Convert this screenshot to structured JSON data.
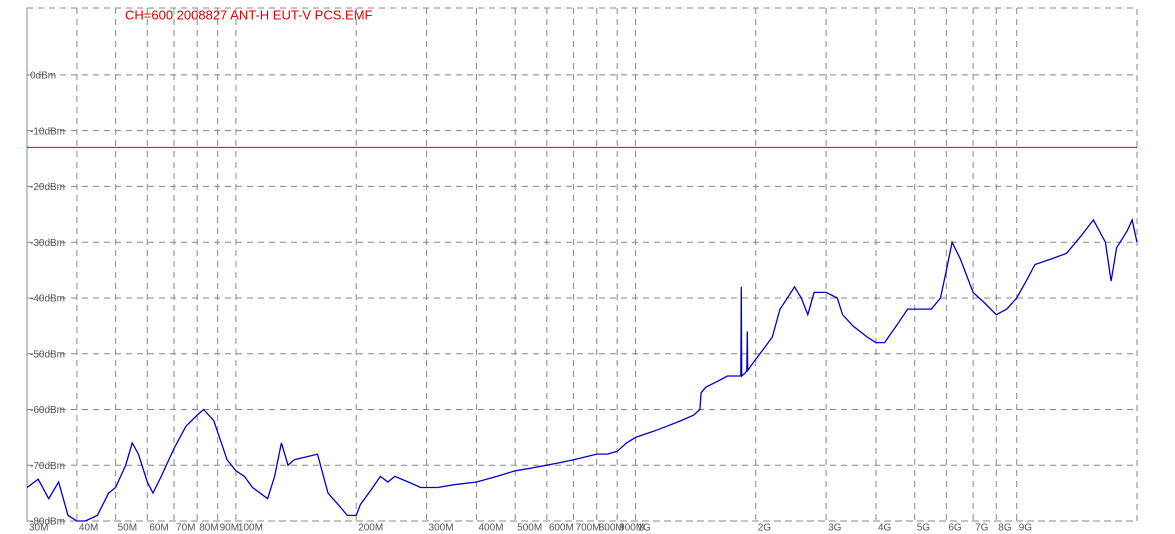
{
  "chart_data": {
    "type": "line",
    "title": "CH=600 2008827 ANT-H EUT-V PCS.EMF",
    "xscale": "log",
    "grid": true,
    "xlim": [
      30,
      18000
    ],
    "ylim": [
      -80,
      12
    ],
    "xticks": [
      {
        "value": 30,
        "label": "30M"
      },
      {
        "value": 40,
        "label": "40M"
      },
      {
        "value": 50,
        "label": "50M"
      },
      {
        "value": 60,
        "label": "60M"
      },
      {
        "value": 70,
        "label": "70M"
      },
      {
        "value": 80,
        "label": "80M"
      },
      {
        "value": 90,
        "label": "90M"
      },
      {
        "value": 100,
        "label": "100M"
      },
      {
        "value": 200,
        "label": "200M"
      },
      {
        "value": 300,
        "label": "300M"
      },
      {
        "value": 400,
        "label": "400M"
      },
      {
        "value": 500,
        "label": "500M"
      },
      {
        "value": 600,
        "label": "600M"
      },
      {
        "value": 700,
        "label": "700M"
      },
      {
        "value": 800,
        "label": "800M"
      },
      {
        "value": 900,
        "label": "900M"
      },
      {
        "value": 1000,
        "label": "1G"
      },
      {
        "value": 2000,
        "label": "2G"
      },
      {
        "value": 3000,
        "label": "3G"
      },
      {
        "value": 4000,
        "label": "4G"
      },
      {
        "value": 5000,
        "label": "5G"
      },
      {
        "value": 6000,
        "label": "6G"
      },
      {
        "value": 7000,
        "label": "7G"
      },
      {
        "value": 8000,
        "label": "8G"
      },
      {
        "value": 9000,
        "label": "9G"
      }
    ],
    "yticks": [
      {
        "value": -80,
        "label": "-80dBm"
      },
      {
        "value": -70,
        "label": "-70dBm"
      },
      {
        "value": -60,
        "label": "-60dBm"
      },
      {
        "value": -50,
        "label": "-50dBm"
      },
      {
        "value": -40,
        "label": "-40dBm"
      },
      {
        "value": -30,
        "label": "-30dBm"
      },
      {
        "value": -20,
        "label": "-20dBm"
      },
      {
        "value": -10,
        "label": "-10dBm"
      },
      {
        "value": 0,
        "label": "0dBm"
      }
    ],
    "limit_line": {
      "value": -13,
      "color": "#e00000"
    },
    "series": [
      {
        "color": "#0000cc",
        "x": [
          30,
          32,
          34,
          36,
          38,
          40,
          42,
          45,
          48,
          50,
          53,
          55,
          57,
          60,
          62,
          65,
          70,
          75,
          80,
          83,
          88,
          92,
          95,
          100,
          105,
          110,
          120,
          125,
          130,
          135,
          140,
          150,
          160,
          170,
          180,
          190,
          200,
          205,
          210,
          220,
          230,
          240,
          250,
          270,
          290,
          320,
          350,
          400,
          450,
          500,
          550,
          600,
          650,
          700,
          750,
          800,
          850,
          900,
          950,
          1000,
          1100,
          1200,
          1300,
          1400,
          1450,
          1460,
          1500,
          1600,
          1700,
          1800,
          1835,
          1840,
          1845,
          1880,
          1900,
          1905,
          1910,
          2000,
          2100,
          2200,
          2300,
          2400,
          2500,
          2600,
          2700,
          2800,
          3000,
          3200,
          3300,
          3500,
          3800,
          4000,
          4200,
          4500,
          4800,
          5000,
          5500,
          5800,
          6000,
          6200,
          6500,
          7000,
          7500,
          8000,
          8500,
          9000,
          9500,
          10000,
          11000,
          12000,
          13000,
          14000,
          15000,
          15500,
          16000,
          17000,
          17500,
          18000
        ],
        "values": [
          -74,
          -72.5,
          -76,
          -73,
          -79,
          -80,
          -80,
          -79,
          -75,
          -74,
          -70,
          -66,
          -68,
          -73,
          -75,
          -72,
          -67,
          -63,
          -61,
          -60,
          -62,
          -66,
          -69,
          -71,
          -72,
          -74,
          -76,
          -72,
          -66,
          -70,
          -69,
          -68.5,
          -68,
          -75,
          -77,
          -79,
          -79,
          -77,
          -76,
          -74,
          -72,
          -73,
          -72,
          -73,
          -74,
          -74,
          -73.5,
          -73,
          -72,
          -71,
          -70.5,
          -70,
          -69.5,
          -69,
          -68.5,
          -68,
          -68,
          -67.5,
          -66,
          -65,
          -64,
          -63,
          -62,
          -61,
          -60,
          -57,
          -56,
          -55,
          -54,
          -54,
          -54,
          -38,
          -54,
          -53.5,
          -53,
          -46,
          -53,
          -51,
          -49,
          -47,
          -42,
          -40,
          -38,
          -40,
          -43,
          -39,
          -39,
          -40,
          -43,
          -45,
          -47,
          -48,
          -48,
          -45,
          -42,
          -42,
          -42,
          -40,
          -35,
          -30,
          -33,
          -39,
          -41,
          -43,
          -42,
          -40,
          -37,
          -34,
          -33,
          -32,
          -29,
          -26,
          -30,
          -37,
          -31,
          -28,
          -26,
          -30
        ]
      }
    ]
  }
}
